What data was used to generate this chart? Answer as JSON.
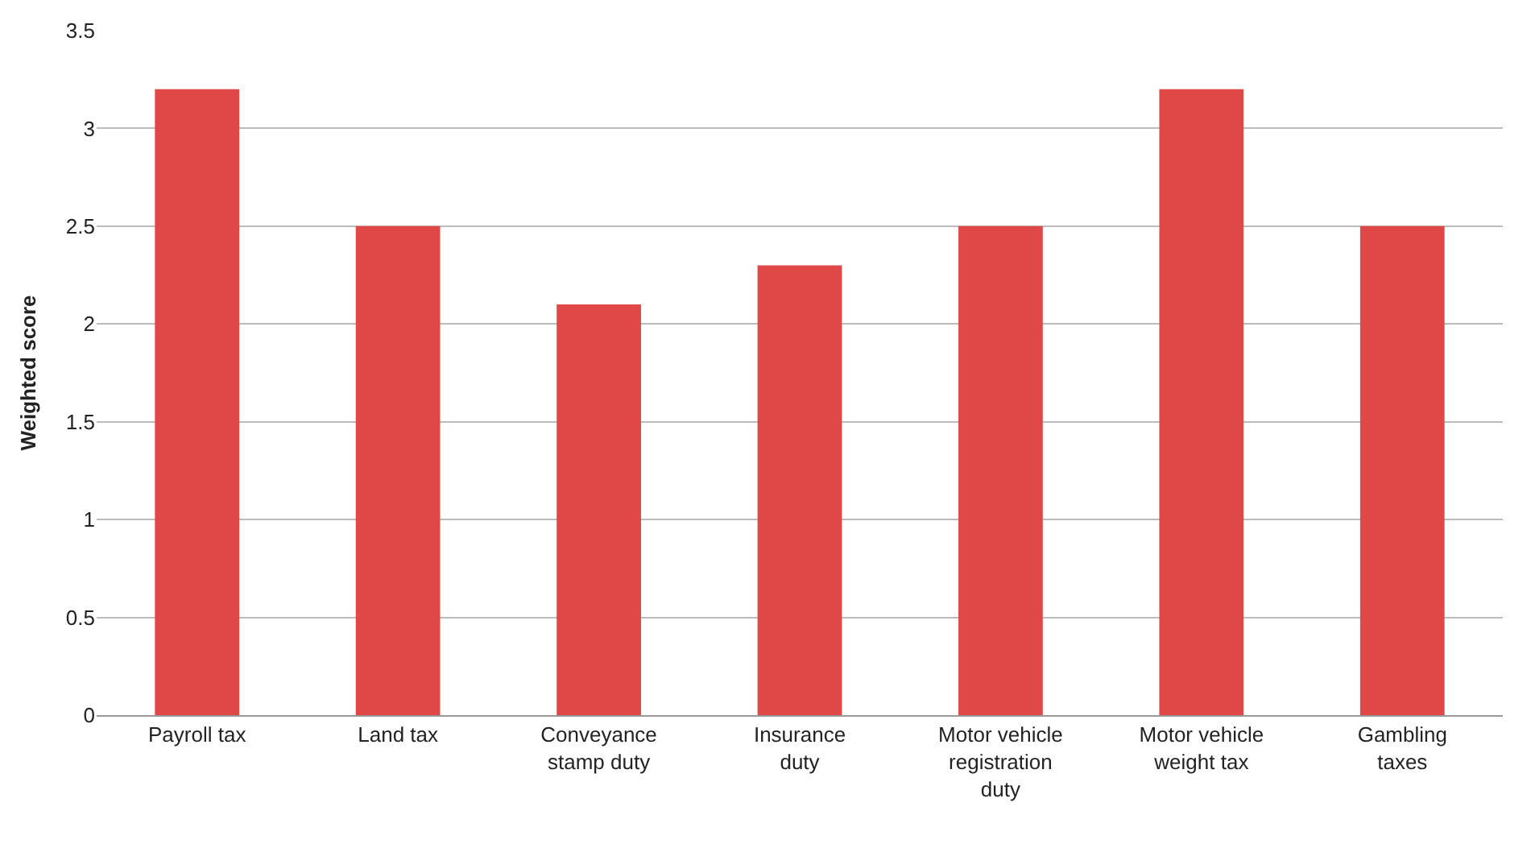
{
  "chart_data": {
    "type": "bar",
    "ylabel": "Weighted score",
    "categories": [
      "Payroll tax",
      "Land tax",
      "Conveyance stamp duty",
      "Insurance duty",
      "Motor vehicle registration duty",
      "Motor vehicle weight tax",
      "Gambling taxes"
    ],
    "values": [
      3.2,
      2.5,
      2.1,
      2.3,
      2.5,
      3.2,
      2.5
    ],
    "color": "#e04848",
    "ylim": [
      0,
      3.5
    ],
    "yticks": [
      0,
      0.5,
      1,
      1.5,
      2,
      2.5,
      3,
      3.5
    ],
    "grid": "y"
  }
}
